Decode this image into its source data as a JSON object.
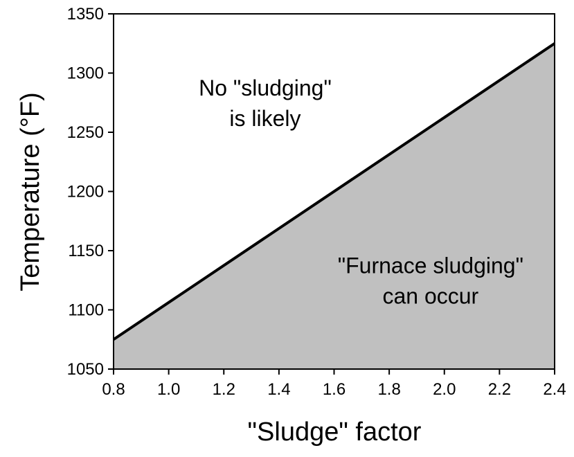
{
  "chart_data": {
    "type": "area",
    "xlabel": "\"Sludge\" factor",
    "ylabel": "Temperature (°F)",
    "xlim": [
      0.8,
      2.4
    ],
    "ylim": [
      1050,
      1350
    ],
    "x_ticks": [
      "0.8",
      "1.0",
      "1.2",
      "1.4",
      "1.6",
      "1.8",
      "2.0",
      "2.2",
      "2.4"
    ],
    "y_ticks": [
      "1050",
      "1100",
      "1150",
      "1200",
      "1250",
      "1300",
      "1350"
    ],
    "boundary": {
      "x": [
        0.8,
        2.4
      ],
      "y": [
        1075,
        1325
      ]
    },
    "grid": false,
    "colors": {
      "fill": "#c0c0c0",
      "line": "#000000"
    },
    "annotations": {
      "above": {
        "line1": "No \"sludging\"",
        "line2": "is likely",
        "x": 1.35,
        "y": 1268
      },
      "below": {
        "line1": "\"Furnace sludging\"",
        "line2": "can occur",
        "x": 1.95,
        "y": 1118
      }
    }
  }
}
